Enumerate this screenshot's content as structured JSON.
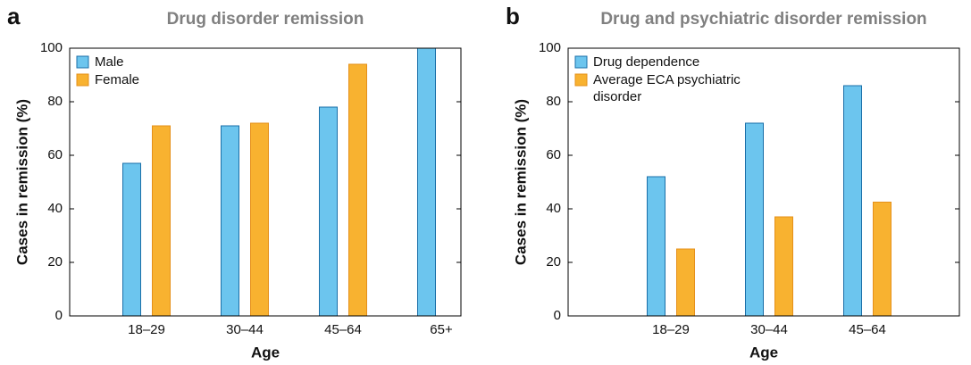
{
  "chart_data": [
    {
      "type": "bar",
      "label": "a",
      "title": "Drug disorder remission",
      "xlabel": "Age",
      "ylabel": "Cases in remission (%)",
      "categories": [
        "18–29",
        "30–44",
        "45–64",
        "65+"
      ],
      "series": [
        {
          "name": "Male",
          "color": "#6cc5ee",
          "values": [
            57,
            71,
            78,
            100
          ]
        },
        {
          "name": "Female",
          "color": "#f8b230",
          "values": [
            71,
            72,
            94,
            null
          ]
        }
      ],
      "ylim": [
        0,
        100
      ],
      "yticks": [
        0,
        20,
        40,
        60,
        80,
        100
      ],
      "legend": "upper left"
    },
    {
      "type": "bar",
      "label": "b",
      "title": "Drug and psychiatric disorder remission",
      "xlabel": "Age",
      "ylabel": "Cases in remission (%)",
      "categories": [
        "18–29",
        "30–44",
        "45–64"
      ],
      "series": [
        {
          "name": "Drug dependence",
          "color": "#6cc5ee",
          "values": [
            52,
            72,
            86
          ]
        },
        {
          "name": "Average ECA psychiatric disorder",
          "color": "#f8b230",
          "values": [
            25,
            37,
            42.5
          ]
        }
      ],
      "ylim": [
        0,
        100
      ],
      "yticks": [
        0,
        20,
        40,
        60,
        80,
        100
      ],
      "legend": "upper left"
    }
  ]
}
